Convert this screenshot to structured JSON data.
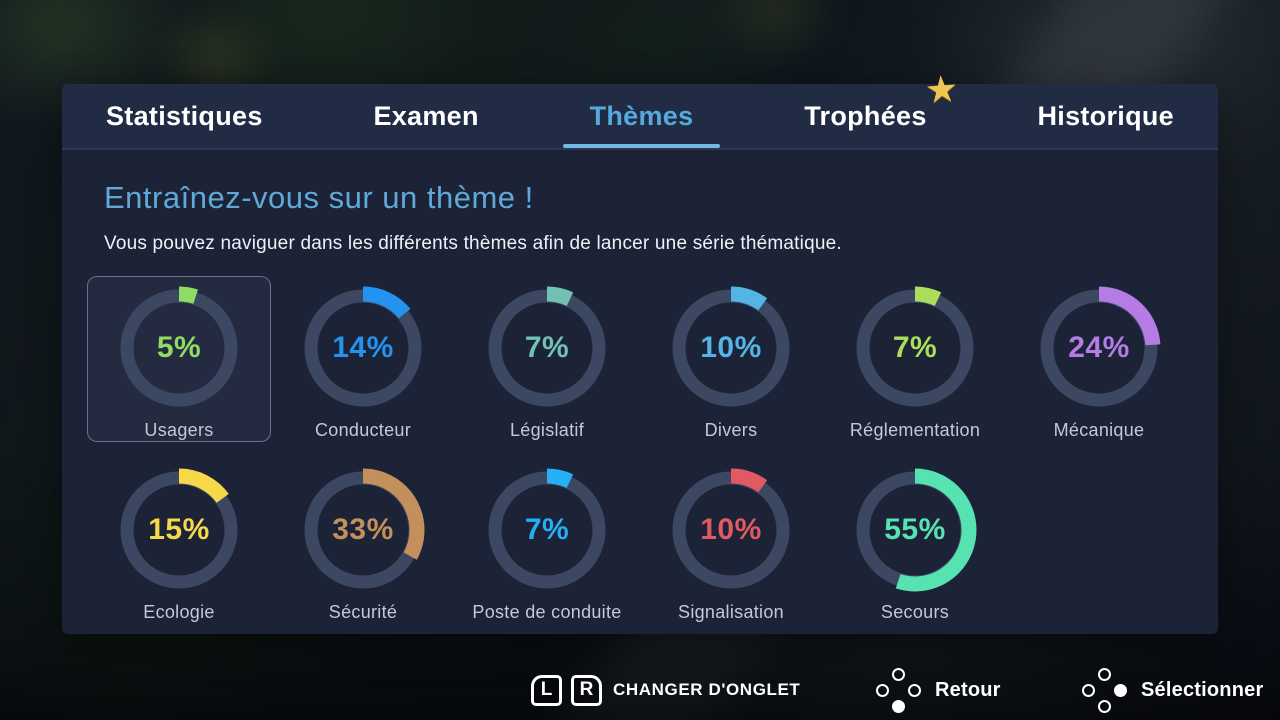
{
  "tabs": [
    {
      "label": "Statistiques",
      "active": false
    },
    {
      "label": "Examen",
      "active": false
    },
    {
      "label": "Thèmes",
      "active": true
    },
    {
      "label": "Trophées",
      "active": false,
      "badge": "star"
    },
    {
      "label": "Historique",
      "active": false
    }
  ],
  "header": {
    "title": "Entraînez-vous sur un thème !",
    "subtitle": "Vous pouvez naviguer dans les différents thèmes afin de lancer une série thématique."
  },
  "themes": [
    {
      "label": "Usagers",
      "percent": 5,
      "percent_label": "5%",
      "color": "#8edc63",
      "selected": true
    },
    {
      "label": "Conducteur",
      "percent": 14,
      "percent_label": "14%",
      "color": "#2492ef",
      "selected": false
    },
    {
      "label": "Législatif",
      "percent": 7,
      "percent_label": "7%",
      "color": "#72c2b1",
      "selected": false
    },
    {
      "label": "Divers",
      "percent": 10,
      "percent_label": "10%",
      "color": "#54b4e4",
      "selected": false
    },
    {
      "label": "Réglementation",
      "percent": 7,
      "percent_label": "7%",
      "color": "#abde5b",
      "selected": false
    },
    {
      "label": "Mécanique",
      "percent": 24,
      "percent_label": "24%",
      "color": "#b47ce4",
      "selected": false
    },
    {
      "label": "Ecologie",
      "percent": 15,
      "percent_label": "15%",
      "color": "#f6d848",
      "selected": false
    },
    {
      "label": "Sécurité",
      "percent": 33,
      "percent_label": "33%",
      "color": "#c3905c",
      "selected": false
    },
    {
      "label": "Poste de conduite",
      "percent": 7,
      "percent_label": "7%",
      "color": "#25aff4",
      "selected": false
    },
    {
      "label": "Signalisation",
      "percent": 10,
      "percent_label": "10%",
      "color": "#e15a63",
      "selected": false
    },
    {
      "label": "Secours",
      "percent": 55,
      "percent_label": "55%",
      "color": "#57e2b2",
      "selected": false
    }
  ],
  "ring": {
    "track_color": "#3c4761"
  },
  "footer": {
    "l_key": "L",
    "r_key": "R",
    "change_tab_label": "CHANGER D'ONGLET",
    "back_label": "Retour",
    "select_label": "Sélectionner"
  },
  "colors": {
    "panel_bg": "#1c2337",
    "tabbar_bg": "#222b44",
    "active_tab": "#55a9dc",
    "tab_underline": "#74b8e4",
    "title": "#5fa9d9",
    "theme_label": "#c3c9d6"
  }
}
